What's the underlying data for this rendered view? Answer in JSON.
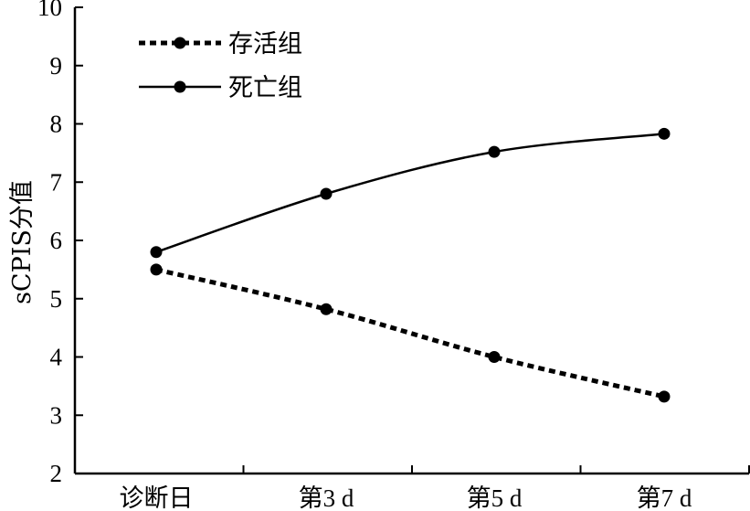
{
  "chart_data": {
    "type": "line",
    "title": "",
    "xlabel": "",
    "ylabel": "sCPIS分值",
    "categories": [
      "诊断日",
      "第3 d",
      "第5 d",
      "第7 d"
    ],
    "ylim": [
      2,
      10
    ],
    "yticks": [
      2,
      3,
      4,
      5,
      6,
      7,
      8,
      9,
      10
    ],
    "grid": false,
    "legend_position": "top-left",
    "series": [
      {
        "name": "存活组",
        "values": [
          5.5,
          4.82,
          4.0,
          3.32
        ],
        "line_style": "dashed",
        "color": "#000000"
      },
      {
        "name": "死亡组",
        "values": [
          5.8,
          6.8,
          7.52,
          7.83
        ],
        "line_style": "solid",
        "color": "#000000"
      }
    ]
  }
}
